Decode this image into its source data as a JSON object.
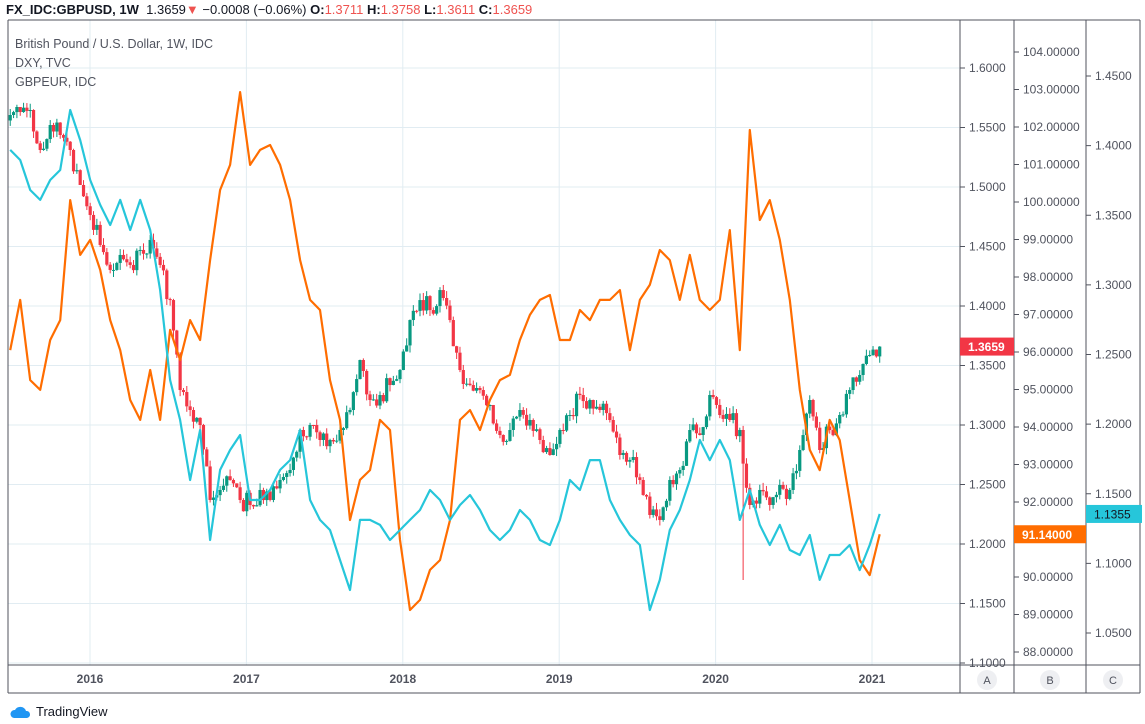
{
  "header": {
    "symbol": "FX_IDC:GBPUSD, 1W",
    "last": "1.3659",
    "change": "−0.0008 (−0.06%)",
    "o_label": "O:",
    "o": "1.3711",
    "h_label": "H:",
    "h": "1.3758",
    "l_label": "L:",
    "l": "1.3611",
    "c_label": "C:",
    "c": "1.3659"
  },
  "legend": [
    "British Pound / U.S. Dollar, 1W, IDC",
    "DXY, TVC",
    "GBPEUR, IDC"
  ],
  "branding": "TradingView",
  "colors": {
    "up": "#089981",
    "down": "#f23645",
    "dxy": "#ff6d00",
    "gbpeur": "#26c6da",
    "grid": "#e1ecf2"
  },
  "chart_data": {
    "type": "line",
    "x_unit": "year",
    "x_start": 2015.49,
    "x_step": 0.0639,
    "xlim": [
      2015.475,
      2021.6
    ],
    "x_ticks": [
      "2016",
      "2017",
      "2018",
      "2019",
      "2020",
      "2021"
    ],
    "axis_labels": [
      "A",
      "B",
      "C"
    ],
    "series": [
      {
        "name": "British Pound / U.S. Dollar",
        "kind": "candlestick",
        "axis": "A",
        "color_up": "#089981",
        "color_down": "#f23645",
        "last_label": "1.3659",
        "closes": [
          1.5605,
          1.563,
          1.5647,
          1.5311,
          1.5521,
          1.5437,
          1.5311,
          1.5017,
          1.4765,
          1.4513,
          1.4303,
          1.4429,
          1.4345,
          1.4471,
          1.4555,
          1.4345,
          1.405,
          1.3294,
          1.3126,
          1.3,
          1.237,
          1.2454,
          1.2538,
          1.237,
          1.2328,
          1.2454,
          1.237,
          1.2538,
          1.2622,
          1.2958,
          1.3,
          1.2874,
          1.2874,
          1.2958,
          1.3126,
          1.3546,
          1.321,
          1.3252,
          1.3336,
          1.3462,
          1.3882,
          1.405,
          1.3966,
          1.4134,
          1.3882,
          1.3462,
          1.3336,
          1.3294,
          1.3168,
          1.2916,
          1.2958,
          1.3126,
          1.3042,
          1.2874,
          1.2748,
          1.2958,
          1.3084,
          1.3252,
          1.321,
          1.3126,
          1.3042,
          1.2748,
          1.2706,
          1.2538,
          1.2244,
          1.2202,
          1.2538,
          1.2622,
          1.2958,
          1.2916,
          1.3252,
          1.3084,
          1.3042,
          1.2958,
          1.2328,
          1.2454,
          1.2328,
          1.2496,
          1.2454,
          1.279,
          1.321,
          1.279,
          1.2958,
          1.3084,
          1.3294,
          1.342,
          1.3588,
          1.3659
        ],
        "crash_low": 1.1697
      },
      {
        "name": "DXY",
        "kind": "line",
        "axis": "B",
        "color": "#ff6d00",
        "last_label": "91.14000",
        "values": [
          96.05,
          97.39,
          95.25,
          94.99,
          96.32,
          96.85,
          100.05,
          98.59,
          98.99,
          98.19,
          96.85,
          96.05,
          94.72,
          94.19,
          95.52,
          94.19,
          96.59,
          95.79,
          96.85,
          96.32,
          98.45,
          100.32,
          100.99,
          102.93,
          100.99,
          101.39,
          101.52,
          100.99,
          100.05,
          98.45,
          97.39,
          97.12,
          95.25,
          94.19,
          91.52,
          92.59,
          92.85,
          94.19,
          93.92,
          90.99,
          89.12,
          89.39,
          90.19,
          90.45,
          91.52,
          94.19,
          94.45,
          93.92,
          94.72,
          95.25,
          95.39,
          96.32,
          96.99,
          97.39,
          97.52,
          96.32,
          96.32,
          97.12,
          96.85,
          97.39,
          97.39,
          97.65,
          96.05,
          97.39,
          97.79,
          98.72,
          98.45,
          97.39,
          98.59,
          97.39,
          97.12,
          97.39,
          99.25,
          96.05,
          101.92,
          99.52,
          100.05,
          98.99,
          97.39,
          94.99,
          93.39,
          92.85,
          94.19,
          93.65,
          92.05,
          90.45,
          90.05,
          91.14
        ]
      },
      {
        "name": "GBPEUR",
        "kind": "line",
        "axis": "C",
        "color": "#26c6da",
        "last_label": "1.1355",
        "values": [
          1.3969,
          1.3897,
          1.3681,
          1.361,
          1.3753,
          1.3825,
          1.4256,
          1.404,
          1.3753,
          1.3574,
          1.343,
          1.361,
          1.3394,
          1.361,
          1.3394,
          1.2963,
          1.2317,
          1.203,
          1.1599,
          1.1958,
          1.1168,
          1.1671,
          1.1814,
          1.1922,
          1.1455,
          1.1455,
          1.1527,
          1.1671,
          1.1742,
          1.1958,
          1.1455,
          1.1312,
          1.124,
          1.1024,
          1.0809,
          1.1312,
          1.1312,
          1.1276,
          1.1168,
          1.124,
          1.1312,
          1.1383,
          1.1527,
          1.1455,
          1.1312,
          1.1419,
          1.1491,
          1.1383,
          1.124,
          1.1168,
          1.124,
          1.1383,
          1.1312,
          1.1168,
          1.1132,
          1.1312,
          1.1599,
          1.1527,
          1.1742,
          1.1742,
          1.1455,
          1.1312,
          1.1204,
          1.1132,
          1.0665,
          1.0881,
          1.124,
          1.1383,
          1.1599,
          1.1886,
          1.1742,
          1.1886,
          1.1742,
          1.1312,
          1.1527,
          1.1276,
          1.1132,
          1.1276,
          1.1096,
          1.106,
          1.1204,
          1.0881,
          1.106,
          1.106,
          1.1132,
          1.0952,
          1.1132,
          1.1355
        ]
      }
    ],
    "axes": {
      "A": {
        "ylim": [
          1.1,
          1.6
        ],
        "ticks": [
          "1.6000",
          "1.5500",
          "1.5000",
          "1.4500",
          "1.4000",
          "1.3500",
          "1.3000",
          "1.2500",
          "1.2000",
          "1.1500",
          "1.1000"
        ]
      },
      "B": {
        "ylim": [
          88,
          104
        ],
        "ticks": [
          "104.00000",
          "103.00000",
          "102.00000",
          "101.00000",
          "100.00000",
          "99.00000",
          "98.00000",
          "97.00000",
          "96.00000",
          "95.00000",
          "94.00000",
          "93.00000",
          "92.00000",
          "90.00000",
          "89.00000",
          "88.00000"
        ]
      },
      "C": {
        "ylim": [
          1.05,
          1.45
        ],
        "ticks": [
          "1.4500",
          "1.4000",
          "1.3500",
          "1.3000",
          "1.2500",
          "1.2000",
          "1.1500",
          "1.1000",
          "1.0500"
        ]
      }
    },
    "grid": true
  }
}
